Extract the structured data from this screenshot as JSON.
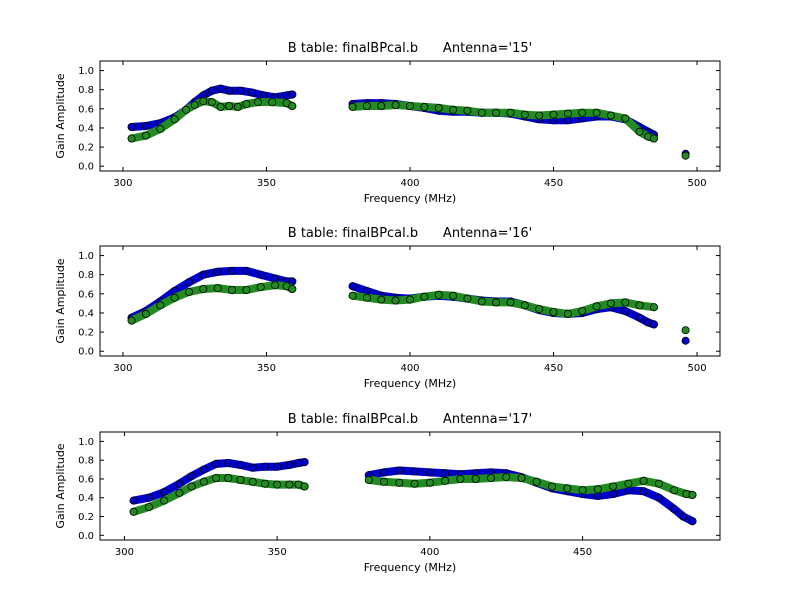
{
  "chart_data": [
    {
      "type": "scatter",
      "title": "B table: finalBPcal.b      Antenna='15'",
      "xlabel": "Frequency (MHz)",
      "ylabel": "Gain Amplitude",
      "xlim": [
        292,
        508
      ],
      "ylim": [
        -0.05,
        1.1
      ],
      "xticks": [
        "300",
        "350",
        "400",
        "450",
        "500"
      ],
      "yticks": [
        "0.0",
        "0.2",
        "0.4",
        "0.6",
        "0.8",
        "1.0"
      ],
      "grid": false,
      "series": [
        {
          "color": "#0000cc",
          "segments": [
            [
              [
                303,
                0.41
              ],
              [
                308,
                0.42
              ],
              [
                313,
                0.45
              ],
              [
                318,
                0.51
              ],
              [
                322,
                0.59
              ],
              [
                325,
                0.67
              ],
              [
                328,
                0.74
              ],
              [
                331,
                0.79
              ],
              [
                334,
                0.81
              ],
              [
                337,
                0.79
              ],
              [
                341,
                0.79
              ],
              [
                345,
                0.77
              ],
              [
                349,
                0.74
              ],
              [
                353,
                0.72
              ],
              [
                357,
                0.74
              ],
              [
                359,
                0.75
              ]
            ],
            [
              [
                380,
                0.65
              ],
              [
                385,
                0.66
              ],
              [
                390,
                0.66
              ],
              [
                395,
                0.65
              ],
              [
                400,
                0.63
              ],
              [
                405,
                0.61
              ],
              [
                410,
                0.58
              ],
              [
                415,
                0.57
              ],
              [
                420,
                0.57
              ],
              [
                425,
                0.56
              ],
              [
                430,
                0.56
              ],
              [
                435,
                0.55
              ],
              [
                440,
                0.52
              ],
              [
                445,
                0.49
              ],
              [
                450,
                0.48
              ],
              [
                455,
                0.48
              ],
              [
                460,
                0.5
              ],
              [
                465,
                0.52
              ],
              [
                470,
                0.52
              ],
              [
                475,
                0.49
              ],
              [
                480,
                0.41
              ],
              [
                483,
                0.36
              ],
              [
                485,
                0.33
              ]
            ],
            [
              [
                496,
                0.13
              ]
            ]
          ]
        },
        {
          "color": "#228b22",
          "segments": [
            [
              [
                303,
                0.29
              ],
              [
                308,
                0.32
              ],
              [
                313,
                0.39
              ],
              [
                318,
                0.49
              ],
              [
                322,
                0.59
              ],
              [
                325,
                0.64
              ],
              [
                328,
                0.68
              ],
              [
                331,
                0.67
              ],
              [
                334,
                0.62
              ],
              [
                337,
                0.63
              ],
              [
                340,
                0.62
              ],
              [
                343,
                0.65
              ],
              [
                347,
                0.67
              ],
              [
                352,
                0.67
              ],
              [
                357,
                0.66
              ],
              [
                359,
                0.63
              ]
            ],
            [
              [
                380,
                0.62
              ],
              [
                385,
                0.63
              ],
              [
                390,
                0.63
              ],
              [
                395,
                0.64
              ],
              [
                400,
                0.63
              ],
              [
                405,
                0.62
              ],
              [
                410,
                0.61
              ],
              [
                415,
                0.59
              ],
              [
                420,
                0.58
              ],
              [
                425,
                0.56
              ],
              [
                430,
                0.56
              ],
              [
                435,
                0.56
              ],
              [
                440,
                0.54
              ],
              [
                445,
                0.53
              ],
              [
                450,
                0.54
              ],
              [
                455,
                0.55
              ],
              [
                460,
                0.56
              ],
              [
                465,
                0.56
              ],
              [
                470,
                0.53
              ],
              [
                475,
                0.5
              ],
              [
                480,
                0.36
              ],
              [
                483,
                0.31
              ],
              [
                485,
                0.29
              ]
            ],
            [
              [
                496,
                0.11
              ]
            ]
          ]
        }
      ]
    },
    {
      "type": "scatter",
      "title": "B table: finalBPcal.b      Antenna='16'",
      "xlabel": "Frequency (MHz)",
      "ylabel": "Gain Amplitude",
      "xlim": [
        292,
        508
      ],
      "ylim": [
        -0.05,
        1.1
      ],
      "xticks": [
        "300",
        "350",
        "400",
        "450",
        "500"
      ],
      "yticks": [
        "0.0",
        "0.2",
        "0.4",
        "0.6",
        "0.8",
        "1.0"
      ],
      "grid": false,
      "series": [
        {
          "color": "#0000cc",
          "segments": [
            [
              [
                303,
                0.35
              ],
              [
                308,
                0.42
              ],
              [
                313,
                0.52
              ],
              [
                318,
                0.63
              ],
              [
                323,
                0.72
              ],
              [
                328,
                0.8
              ],
              [
                333,
                0.83
              ],
              [
                338,
                0.84
              ],
              [
                343,
                0.84
              ],
              [
                348,
                0.8
              ],
              [
                353,
                0.76
              ],
              [
                357,
                0.73
              ],
              [
                359,
                0.73
              ]
            ],
            [
              [
                380,
                0.68
              ],
              [
                385,
                0.63
              ],
              [
                390,
                0.58
              ],
              [
                395,
                0.56
              ],
              [
                400,
                0.55
              ],
              [
                405,
                0.57
              ],
              [
                410,
                0.58
              ],
              [
                415,
                0.57
              ],
              [
                420,
                0.55
              ],
              [
                425,
                0.53
              ],
              [
                430,
                0.52
              ],
              [
                435,
                0.52
              ],
              [
                440,
                0.48
              ],
              [
                445,
                0.43
              ],
              [
                450,
                0.4
              ],
              [
                455,
                0.39
              ],
              [
                460,
                0.4
              ],
              [
                465,
                0.44
              ],
              [
                470,
                0.46
              ],
              [
                475,
                0.42
              ],
              [
                480,
                0.35
              ],
              [
                483,
                0.3
              ],
              [
                485,
                0.28
              ]
            ],
            [
              [
                496,
                0.11
              ]
            ]
          ]
        },
        {
          "color": "#228b22",
          "segments": [
            [
              [
                303,
                0.32
              ],
              [
                308,
                0.39
              ],
              [
                313,
                0.48
              ],
              [
                318,
                0.56
              ],
              [
                323,
                0.62
              ],
              [
                328,
                0.65
              ],
              [
                333,
                0.66
              ],
              [
                338,
                0.64
              ],
              [
                343,
                0.64
              ],
              [
                348,
                0.67
              ],
              [
                353,
                0.69
              ],
              [
                357,
                0.68
              ],
              [
                359,
                0.65
              ]
            ],
            [
              [
                380,
                0.58
              ],
              [
                385,
                0.56
              ],
              [
                390,
                0.54
              ],
              [
                395,
                0.53
              ],
              [
                400,
                0.54
              ],
              [
                405,
                0.57
              ],
              [
                410,
                0.59
              ],
              [
                415,
                0.58
              ],
              [
                420,
                0.55
              ],
              [
                425,
                0.52
              ],
              [
                430,
                0.51
              ],
              [
                435,
                0.51
              ],
              [
                440,
                0.48
              ],
              [
                445,
                0.44
              ],
              [
                450,
                0.41
              ],
              [
                455,
                0.39
              ],
              [
                460,
                0.42
              ],
              [
                465,
                0.47
              ],
              [
                470,
                0.5
              ],
              [
                475,
                0.51
              ],
              [
                480,
                0.48
              ],
              [
                485,
                0.46
              ]
            ],
            [
              [
                496,
                0.22
              ]
            ]
          ]
        }
      ]
    },
    {
      "type": "scatter",
      "title": "B table: finalBPcal.b      Antenna='17'",
      "xlabel": "Frequency (MHz)",
      "ylabel": "Gain Amplitude",
      "xlim": [
        292,
        495
      ],
      "ylim": [
        -0.05,
        1.1
      ],
      "xticks": [
        "300",
        "350",
        "400",
        "450"
      ],
      "yticks": [
        "0.0",
        "0.2",
        "0.4",
        "0.6",
        "0.8",
        "1.0"
      ],
      "grid": false,
      "series": [
        {
          "color": "#0000cc",
          "segments": [
            [
              [
                303,
                0.37
              ],
              [
                308,
                0.4
              ],
              [
                313,
                0.46
              ],
              [
                318,
                0.55
              ],
              [
                322,
                0.63
              ],
              [
                326,
                0.7
              ],
              [
                330,
                0.76
              ],
              [
                334,
                0.77
              ],
              [
                338,
                0.75
              ],
              [
                342,
                0.72
              ],
              [
                346,
                0.73
              ],
              [
                350,
                0.73
              ],
              [
                354,
                0.75
              ],
              [
                357,
                0.77
              ],
              [
                359,
                0.78
              ]
            ],
            [
              [
                380,
                0.64
              ],
              [
                385,
                0.67
              ],
              [
                390,
                0.69
              ],
              [
                395,
                0.68
              ],
              [
                400,
                0.67
              ],
              [
                405,
                0.66
              ],
              [
                410,
                0.65
              ],
              [
                415,
                0.66
              ],
              [
                420,
                0.67
              ],
              [
                425,
                0.66
              ],
              [
                430,
                0.62
              ],
              [
                435,
                0.56
              ],
              [
                440,
                0.5
              ],
              [
                445,
                0.47
              ],
              [
                450,
                0.44
              ],
              [
                455,
                0.42
              ],
              [
                460,
                0.44
              ],
              [
                465,
                0.48
              ],
              [
                470,
                0.47
              ],
              [
                475,
                0.4
              ],
              [
                480,
                0.28
              ],
              [
                483,
                0.2
              ],
              [
                486,
                0.15
              ]
            ]
          ]
        },
        {
          "color": "#228b22",
          "segments": [
            [
              [
                303,
                0.25
              ],
              [
                308,
                0.3
              ],
              [
                313,
                0.37
              ],
              [
                318,
                0.45
              ],
              [
                322,
                0.52
              ],
              [
                326,
                0.57
              ],
              [
                330,
                0.61
              ],
              [
                334,
                0.61
              ],
              [
                338,
                0.59
              ],
              [
                342,
                0.57
              ],
              [
                346,
                0.55
              ],
              [
                350,
                0.54
              ],
              [
                354,
                0.54
              ],
              [
                357,
                0.54
              ],
              [
                359,
                0.52
              ]
            ],
            [
              [
                380,
                0.59
              ],
              [
                385,
                0.57
              ],
              [
                390,
                0.56
              ],
              [
                395,
                0.55
              ],
              [
                400,
                0.56
              ],
              [
                405,
                0.58
              ],
              [
                410,
                0.6
              ],
              [
                415,
                0.6
              ],
              [
                420,
                0.61
              ],
              [
                425,
                0.62
              ],
              [
                430,
                0.61
              ],
              [
                435,
                0.57
              ],
              [
                440,
                0.52
              ],
              [
                445,
                0.5
              ],
              [
                450,
                0.48
              ],
              [
                455,
                0.49
              ],
              [
                460,
                0.52
              ],
              [
                465,
                0.55
              ],
              [
                470,
                0.58
              ],
              [
                475,
                0.55
              ],
              [
                480,
                0.48
              ],
              [
                484,
                0.44
              ],
              [
                486,
                0.43
              ]
            ]
          ]
        }
      ]
    }
  ]
}
